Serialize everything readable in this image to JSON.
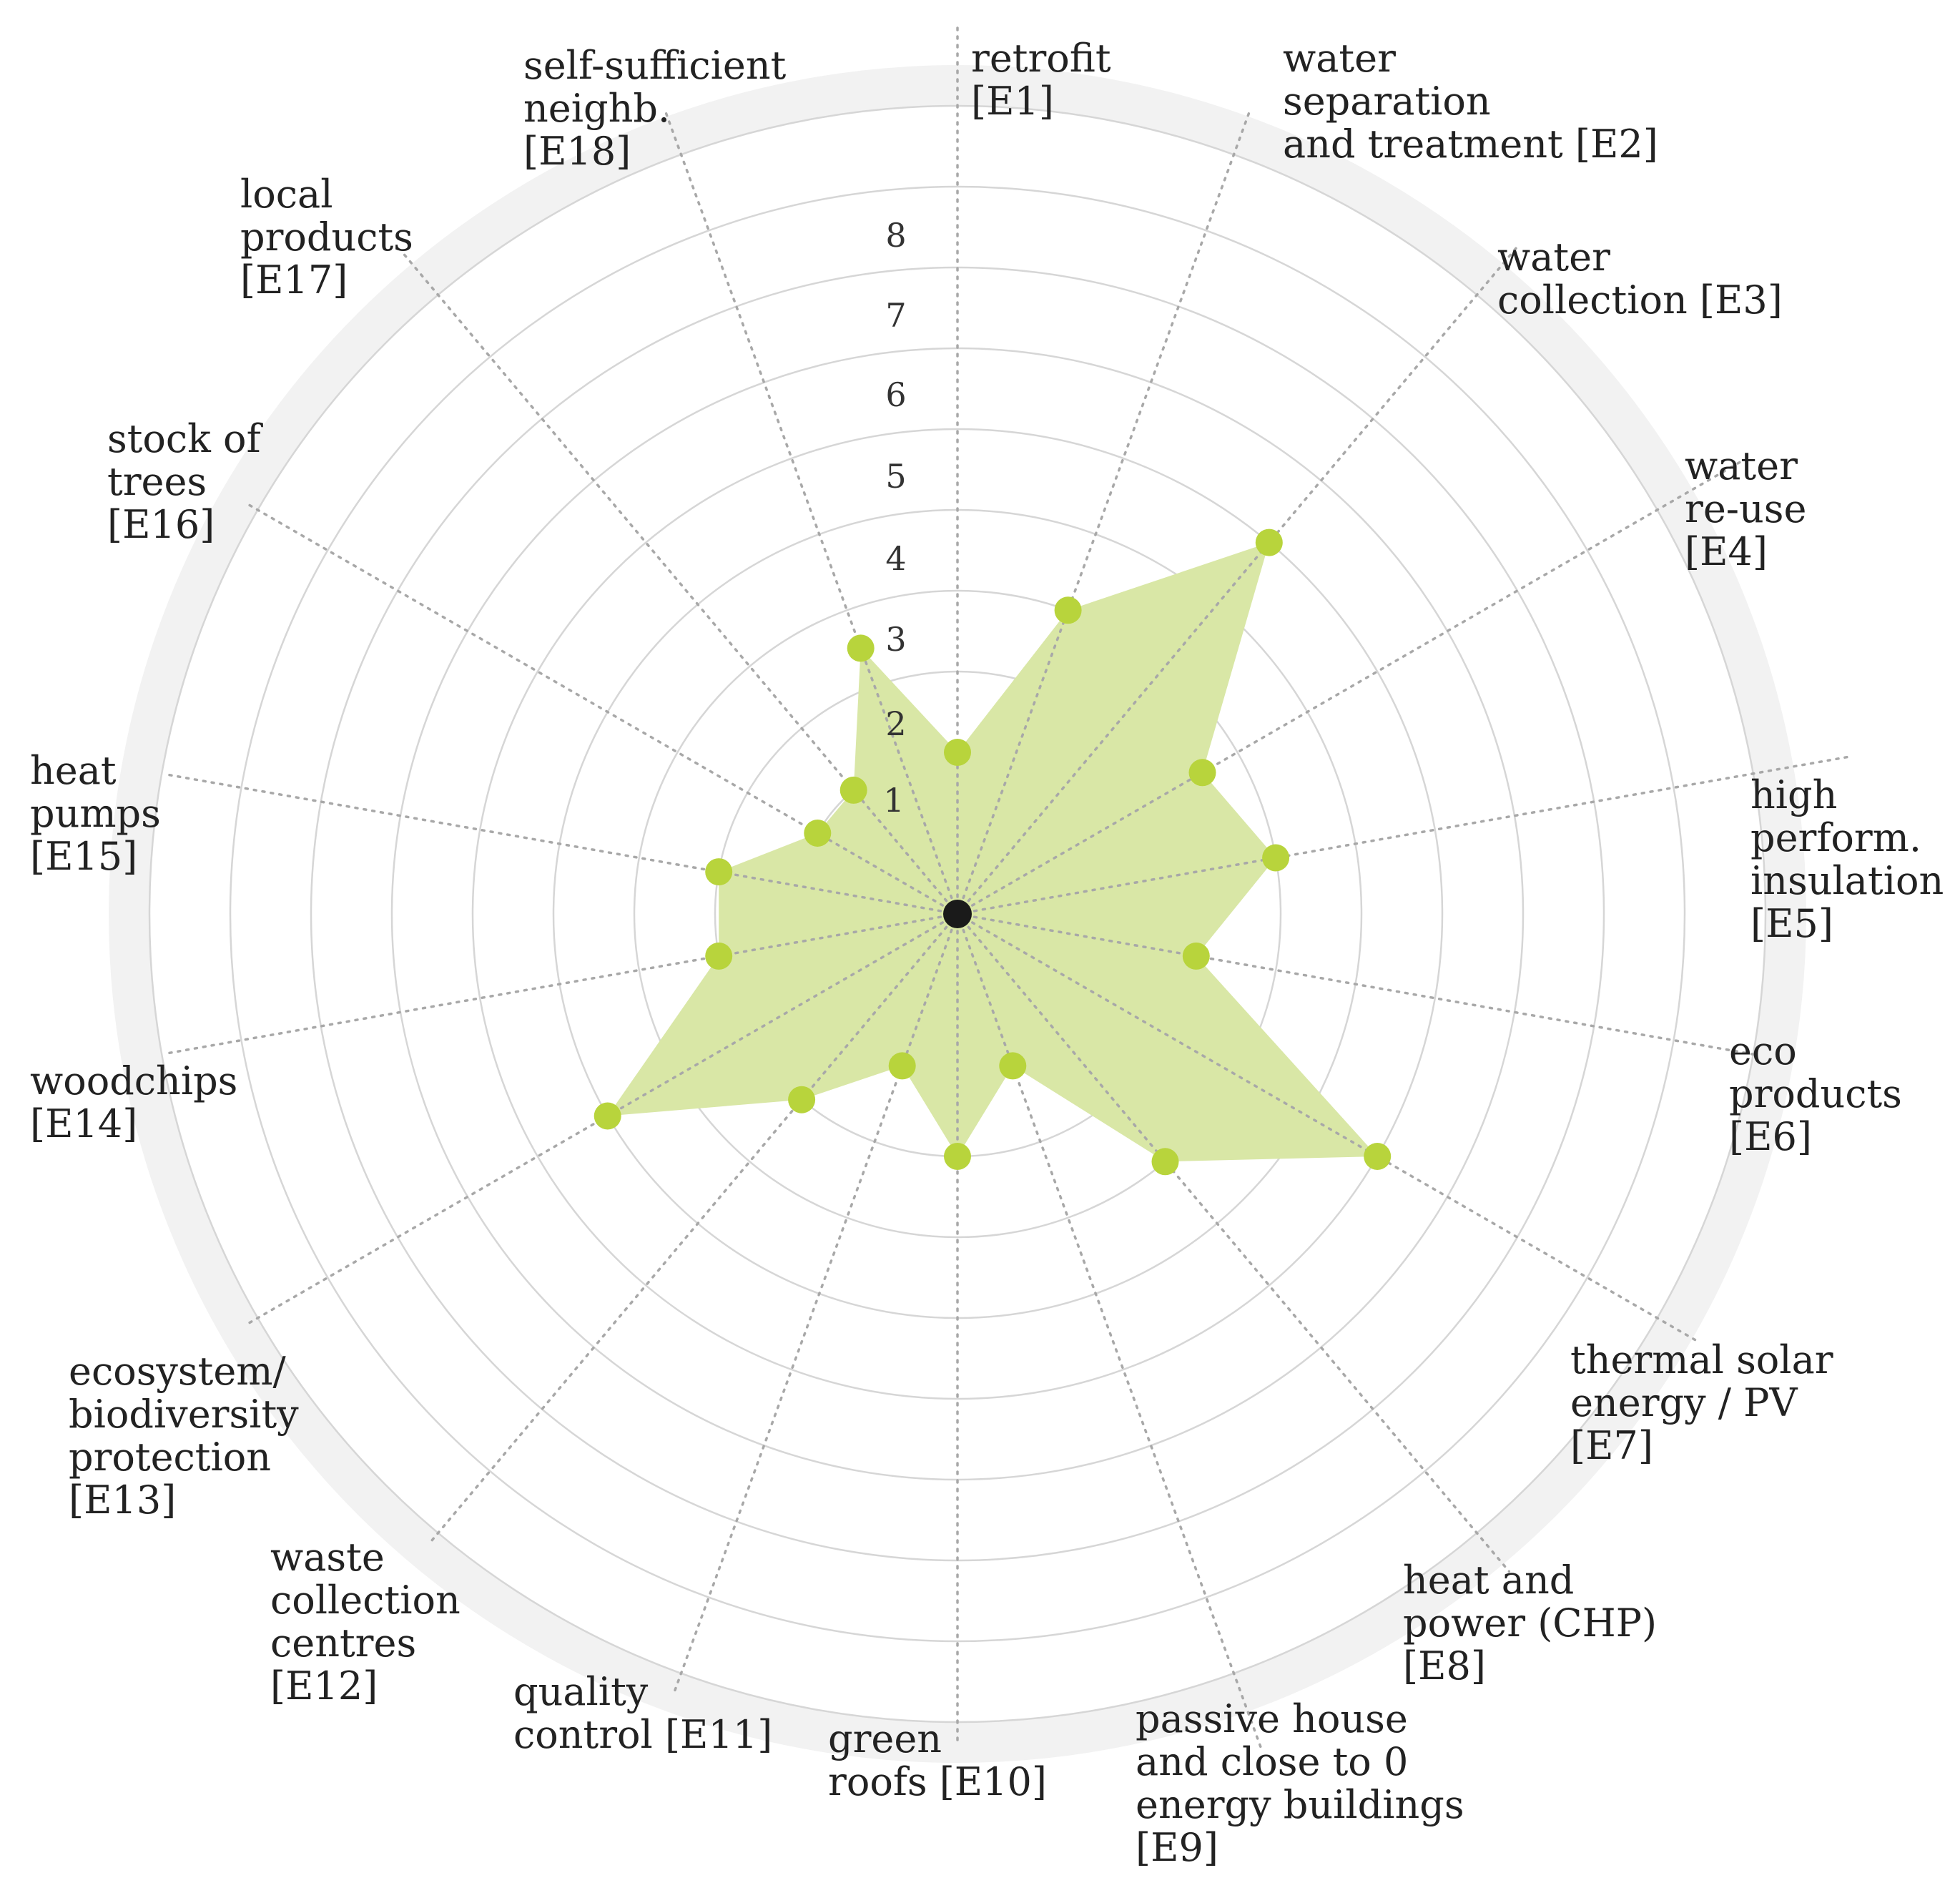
{
  "chart_data": {
    "type": "radar",
    "title": "",
    "rmax": 10,
    "ticks": [
      "1",
      "2",
      "3",
      "4",
      "5",
      "6",
      "7",
      "8"
    ],
    "grid": true,
    "colors": {
      "fill": "#d9e7a6",
      "marker": "#b8d43c",
      "ring": "#d6d6d6",
      "outer_band": "#f2f2f2",
      "spoke": "#a8a8a8",
      "center": "#1a1a1a",
      "text": "#222222"
    },
    "categories": [
      {
        "id": "E1",
        "lines": [
          "retrofit",
          "[E1]"
        ]
      },
      {
        "id": "E2",
        "lines": [
          "water",
          "separation",
          "and treatment [E2]"
        ]
      },
      {
        "id": "E3",
        "lines": [
          "water",
          "collection [E3]"
        ]
      },
      {
        "id": "E4",
        "lines": [
          "water",
          "re-use",
          "[E4]"
        ]
      },
      {
        "id": "E5",
        "lines": [
          "high",
          "perform.",
          "insulation",
          "[E5]"
        ]
      },
      {
        "id": "E6",
        "lines": [
          "eco",
          "products",
          "[E6]"
        ]
      },
      {
        "id": "E7",
        "lines": [
          "thermal solar",
          "energy / PV",
          "[E7]"
        ]
      },
      {
        "id": "E8",
        "lines": [
          "heat and",
          "power (CHP)",
          "[E8]"
        ]
      },
      {
        "id": "E9",
        "lines": [
          "passive house",
          "and close to 0",
          "energy buildings",
          "[E9]"
        ]
      },
      {
        "id": "E10",
        "lines": [
          "green",
          "roofs [E10]"
        ]
      },
      {
        "id": "E11",
        "lines": [
          "quality",
          "control [E11]"
        ]
      },
      {
        "id": "E12",
        "lines": [
          "waste",
          "collection",
          "centres",
          "[E12]"
        ]
      },
      {
        "id": "E13",
        "lines": [
          "ecosystem/",
          "biodiversity",
          "protection",
          "[E13]"
        ]
      },
      {
        "id": "E14",
        "lines": [
          "woodchips",
          "[E14]"
        ]
      },
      {
        "id": "E15",
        "lines": [
          "heat",
          "pumps",
          "[E15]"
        ]
      },
      {
        "id": "E16",
        "lines": [
          "stock of",
          "trees",
          "[E16]"
        ]
      },
      {
        "id": "E17",
        "lines": [
          "local",
          "products",
          "[E17]"
        ]
      },
      {
        "id": "E18",
        "lines": [
          "self-sufficient",
          "neighb.",
          "[E18]"
        ]
      }
    ],
    "series": [
      {
        "values": [
          2,
          4,
          6,
          3.5,
          4,
          3,
          6,
          4,
          2,
          3,
          2,
          3,
          5,
          3,
          3,
          2,
          2,
          3.5
        ]
      }
    ]
  }
}
